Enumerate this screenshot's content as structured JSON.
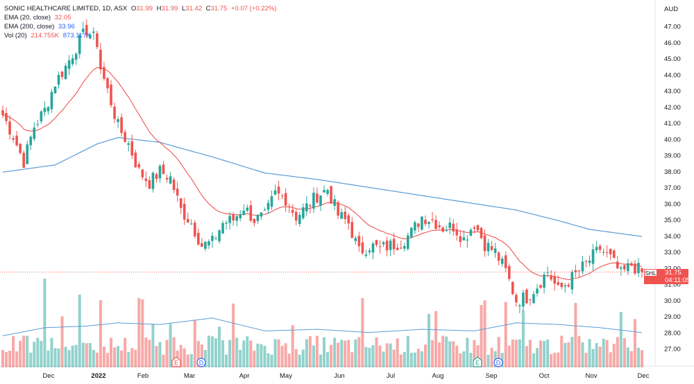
{
  "header": {
    "title": "SONIC HEALTHCARE LIMITED, 1D, ASX",
    "ohlc": [
      {
        "k": "O",
        "v": "31.99"
      },
      {
        "k": "H",
        "v": "31.99"
      },
      {
        "k": "L",
        "v": "31.42"
      },
      {
        "k": "C",
        "v": "31.75"
      }
    ],
    "change": "+0.07 (+0.22%)"
  },
  "indicators": [
    {
      "label": "EMA (20, close)",
      "value": "32.05",
      "color": "#ef5350"
    },
    {
      "label": "EMA (200, close)",
      "value": "33.96",
      "color": "#2962ff"
    },
    {
      "label": "Vol (20)",
      "value": "214.755K",
      "value2": "873.117K",
      "color": "#ef5350",
      "color2": "#2962ff"
    }
  ],
  "currency": "AUD",
  "current": {
    "symbol": "SHL",
    "price": "31.75",
    "countdown": "04:11:05"
  },
  "colors": {
    "up": "#26a69a",
    "down": "#ef5350",
    "ema20": "#ef5350",
    "ema200": "#5b9bd5",
    "vol_ma": "#5b9bd5"
  },
  "chart_data": {
    "type": "candlestick",
    "y_axis": {
      "position": "right",
      "ylim": [
        27.0,
        47.5
      ],
      "ticks": [
        "47.00",
        "46.00",
        "45.00",
        "44.00",
        "43.00",
        "42.00",
        "41.00",
        "40.00",
        "39.00",
        "38.00",
        "37.00",
        "36.00",
        "35.00",
        "34.00",
        "33.00",
        "32.00",
        "31.00",
        "30.00",
        "29.00",
        "28.00",
        "27.00"
      ]
    },
    "x_axis": {
      "ticks": [
        {
          "label": "Dec",
          "bold": false
        },
        {
          "label": "2022",
          "bold": true
        },
        {
          "label": "Feb",
          "bold": false
        },
        {
          "label": "Mar",
          "bold": false
        },
        {
          "label": "Apr",
          "bold": false
        },
        {
          "label": "May",
          "bold": false
        },
        {
          "label": "Jun",
          "bold": false
        },
        {
          "label": "Jul",
          "bold": false
        },
        {
          "label": "Aug",
          "bold": false
        },
        {
          "label": "Sep",
          "bold": false
        },
        {
          "label": "Oct",
          "bold": false
        },
        {
          "label": "Nov",
          "bold": false
        },
        {
          "label": "Dec",
          "bold": false
        }
      ]
    },
    "close_path": [
      [
        0,
        41.5
      ],
      [
        3,
        40.2
      ],
      [
        6,
        38.6
      ],
      [
        9,
        40.8
      ],
      [
        12,
        41.8
      ],
      [
        15,
        43.5
      ],
      [
        18,
        44.5
      ],
      [
        21,
        45.7
      ],
      [
        24,
        46.8
      ],
      [
        27,
        46.0
      ],
      [
        28,
        44.4
      ],
      [
        31,
        42.3
      ],
      [
        33,
        40.8
      ],
      [
        36,
        39.7
      ],
      [
        39,
        38.0
      ],
      [
        42,
        37.3
      ],
      [
        45,
        38.0
      ],
      [
        48,
        37.6
      ],
      [
        51,
        35.6
      ],
      [
        54,
        34.8
      ],
      [
        57,
        33.4
      ],
      [
        60,
        33.6
      ],
      [
        63,
        34.8
      ],
      [
        66,
        35.0
      ],
      [
        69,
        35.8
      ],
      [
        72,
        35.0
      ],
      [
        75,
        35.2
      ],
      [
        78,
        36.6
      ],
      [
        81,
        36.3
      ],
      [
        84,
        35.2
      ],
      [
        87,
        35.8
      ],
      [
        90,
        36.5
      ],
      [
        93,
        36.9
      ],
      [
        96,
        35.3
      ],
      [
        99,
        34.8
      ],
      [
        102,
        33.0
      ],
      [
        105,
        33.4
      ],
      [
        108,
        33.2
      ],
      [
        111,
        33.4
      ],
      [
        114,
        33.6
      ],
      [
        117,
        34.2
      ],
      [
        120,
        35.2
      ],
      [
        123,
        35.0
      ],
      [
        126,
        34.5
      ],
      [
        129,
        34.6
      ],
      [
        132,
        33.8
      ],
      [
        135,
        34.8
      ],
      [
        138,
        33.5
      ],
      [
        141,
        33.0
      ],
      [
        144,
        31.8
      ],
      [
        147,
        30.0
      ],
      [
        150,
        30.2
      ],
      [
        153,
        30.9
      ],
      [
        156,
        31.8
      ],
      [
        159,
        30.6
      ],
      [
        162,
        31.2
      ],
      [
        165,
        31.8
      ],
      [
        168,
        32.5
      ],
      [
        171,
        33.2
      ],
      [
        174,
        32.6
      ],
      [
        177,
        31.6
      ],
      [
        180,
        32.2
      ],
      [
        183,
        31.75
      ]
    ],
    "ema200": [
      [
        0,
        37.95
      ],
      [
        15,
        38.4
      ],
      [
        27,
        39.7
      ],
      [
        33,
        40.1
      ],
      [
        45,
        39.8
      ],
      [
        60,
        38.9
      ],
      [
        75,
        37.9
      ],
      [
        90,
        37.5
      ],
      [
        96,
        37.3
      ],
      [
        111,
        36.8
      ],
      [
        126,
        36.3
      ],
      [
        135,
        36.0
      ],
      [
        147,
        35.6
      ],
      [
        159,
        34.95
      ],
      [
        168,
        34.4
      ],
      [
        183,
        33.96
      ]
    ],
    "volume_ma": [
      [
        0,
        27.8
      ],
      [
        12,
        28.3
      ],
      [
        24,
        28.4
      ],
      [
        33,
        28.6
      ],
      [
        45,
        28.5
      ],
      [
        60,
        28.9
      ],
      [
        75,
        28.1
      ],
      [
        90,
        28.2
      ],
      [
        105,
        28.0
      ],
      [
        120,
        28.2
      ],
      [
        135,
        28.1
      ],
      [
        147,
        28.6
      ],
      [
        159,
        28.5
      ],
      [
        171,
        28.3
      ],
      [
        183,
        28.0
      ]
    ],
    "events": [
      {
        "letter": "E",
        "kind": "earnings",
        "shape": "pentagon",
        "color": "#ef5350"
      },
      {
        "letter": "D",
        "kind": "dividend",
        "shape": "circle",
        "color": "#2962ff"
      },
      {
        "letter": "E",
        "kind": "earnings",
        "shape": "pentagon",
        "color": "#26a69a"
      },
      {
        "letter": "D",
        "kind": "dividend",
        "shape": "circle",
        "color": "#2962ff"
      }
    ]
  }
}
